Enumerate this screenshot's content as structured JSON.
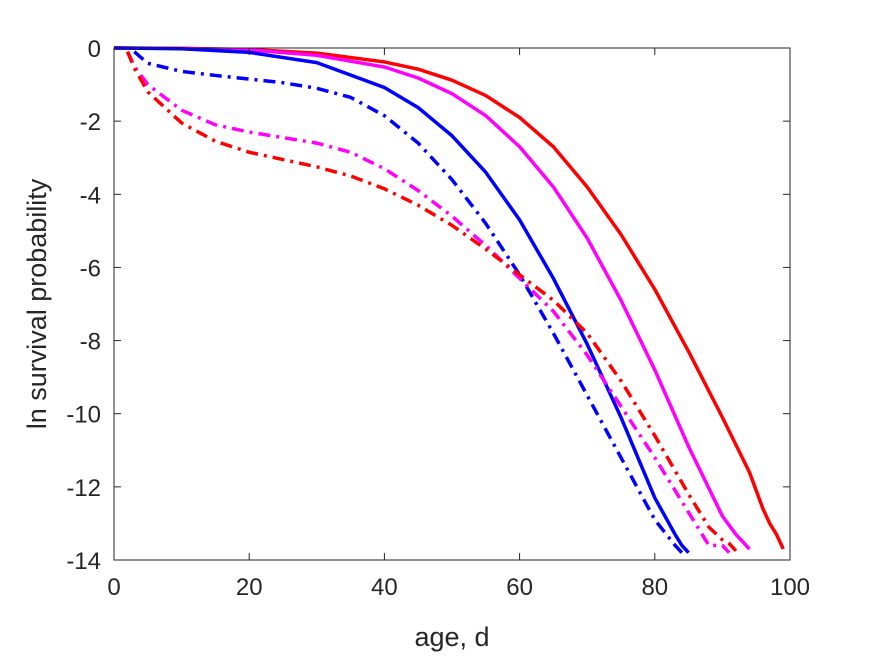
{
  "chart_data": {
    "type": "line",
    "title": "",
    "xlabel": "age, d",
    "ylabel": "ln survival probability",
    "xlim": [
      0,
      100
    ],
    "ylim": [
      -14,
      0
    ],
    "xticks": [
      0,
      20,
      40,
      60,
      80,
      100
    ],
    "yticks": [
      0,
      -2,
      -4,
      -6,
      -8,
      -10,
      -12,
      -14
    ],
    "grid": false,
    "legend": "none",
    "series": [
      {
        "color": "#ff0000",
        "style": "solid",
        "x": [
          0,
          10,
          20,
          30,
          40,
          45,
          50,
          55,
          60,
          65,
          70,
          75,
          80,
          85,
          90,
          94,
          96,
          97,
          98,
          99
        ],
        "y": [
          0,
          -0.01,
          -0.04,
          -0.14,
          -0.38,
          -0.58,
          -0.88,
          -1.3,
          -1.9,
          -2.7,
          -3.8,
          -5.1,
          -6.6,
          -8.3,
          -10.1,
          -11.6,
          -12.6,
          -13.0,
          -13.3,
          -13.7
        ]
      },
      {
        "color": "#ff00ff",
        "style": "solid",
        "x": [
          0,
          10,
          20,
          30,
          40,
          45,
          50,
          55,
          60,
          65,
          70,
          75,
          80,
          85,
          90,
          92,
          93,
          94
        ],
        "y": [
          0,
          -0.01,
          -0.05,
          -0.2,
          -0.52,
          -0.82,
          -1.25,
          -1.85,
          -2.7,
          -3.8,
          -5.2,
          -6.9,
          -8.8,
          -10.9,
          -12.8,
          -13.3,
          -13.5,
          -13.7
        ]
      },
      {
        "color": "#0000ff",
        "style": "solid",
        "x": [
          0,
          10,
          20,
          30,
          40,
          45,
          50,
          55,
          60,
          65,
          70,
          75,
          80,
          83,
          84,
          85
        ],
        "y": [
          0,
          -0.02,
          -0.12,
          -0.4,
          -1.08,
          -1.63,
          -2.4,
          -3.4,
          -4.7,
          -6.3,
          -8.1,
          -10.1,
          -12.3,
          -13.3,
          -13.6,
          -13.8
        ]
      },
      {
        "color": "#0000ff",
        "style": "dashdot",
        "x": [
          3,
          5,
          10,
          15,
          20,
          25,
          30,
          35,
          40,
          45,
          50,
          55,
          60,
          65,
          70,
          75,
          80,
          83,
          84
        ],
        "y": [
          -0.1,
          -0.42,
          -0.64,
          -0.75,
          -0.85,
          -0.95,
          -1.1,
          -1.35,
          -1.85,
          -2.6,
          -3.6,
          -4.8,
          -6.2,
          -7.8,
          -9.5,
          -11.2,
          -12.9,
          -13.6,
          -13.8
        ]
      },
      {
        "color": "#ff00ff",
        "style": "dashdot",
        "x": [
          2,
          3,
          5,
          10,
          15,
          20,
          25,
          30,
          35,
          40,
          45,
          50,
          55,
          60,
          65,
          70,
          75,
          80,
          85,
          88,
          90,
          91
        ],
        "y": [
          -0.1,
          -0.5,
          -1.0,
          -1.7,
          -2.1,
          -2.3,
          -2.45,
          -2.6,
          -2.85,
          -3.3,
          -3.9,
          -4.6,
          -5.4,
          -6.3,
          -7.2,
          -8.4,
          -9.8,
          -11.2,
          -12.7,
          -13.6,
          -13.6,
          -13.8
        ]
      },
      {
        "color": "#ff0000",
        "style": "dashdot",
        "x": [
          2,
          3,
          5,
          10,
          15,
          20,
          25,
          30,
          35,
          40,
          45,
          50,
          55,
          60,
          65,
          70,
          75,
          80,
          85,
          88,
          90,
          91,
          92
        ],
        "y": [
          -0.1,
          -0.55,
          -1.2,
          -2.05,
          -2.55,
          -2.85,
          -3.05,
          -3.25,
          -3.5,
          -3.85,
          -4.3,
          -4.85,
          -5.5,
          -6.2,
          -6.9,
          -7.8,
          -9.1,
          -10.6,
          -12.2,
          -13.1,
          -13.45,
          -13.55,
          -13.75
        ]
      }
    ]
  }
}
